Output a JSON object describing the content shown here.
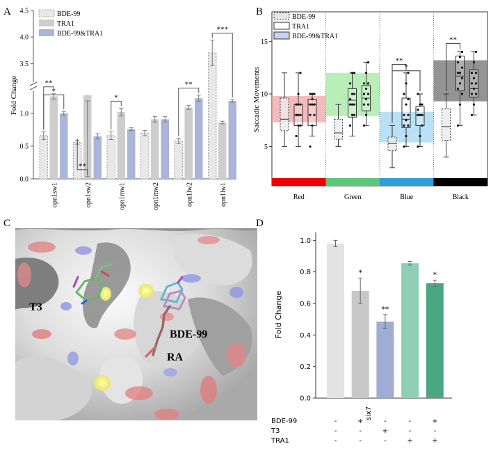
{
  "panels": {
    "A": "A",
    "B": "B",
    "C": "C",
    "D": "D"
  },
  "colors": {
    "bde": "#e8e8e8",
    "tra": "#cdcdcd",
    "combo": "#a9b5d9",
    "d_bars": [
      "#e3e3e3",
      "#c8c8c8",
      "#9fadd4",
      "#8fcfb5",
      "#4aa784"
    ],
    "b_zones": [
      "#ee9797",
      "#93e593",
      "#95cff0",
      "#5a5a5a"
    ],
    "b_strip": [
      "#ee0000",
      "#5ac77c",
      "#2d9ed7",
      "#000000"
    ]
  },
  "chart_data": [
    {
      "panel": "A",
      "type": "bar",
      "ylabel": "Fold Change",
      "y_lower_ticks": [
        "0.0",
        "0.5",
        "1.0"
      ],
      "y_upper_ticks": [
        "3.5",
        "4.0",
        "4.5"
      ],
      "ylim_lower": [
        0,
        1.35
      ],
      "ylim_upper": [
        3.15,
        4.5
      ],
      "axis_break": true,
      "legend_position": "top-left",
      "categories": [
        "opn1sw1",
        "opn1sw2",
        "opn1mw1",
        "opn1mw2",
        "opn1lw2",
        "opn1lw1"
      ],
      "series": [
        {
          "name": "BDE-99",
          "values": [
            0.66,
            0.56,
            0.66,
            0.7,
            0.58,
            3.7
          ],
          "errors": [
            0.06,
            0.03,
            0.06,
            0.04,
            0.04,
            0.24
          ]
        },
        {
          "name": "TRA1",
          "values": [
            1.26,
            1.28,
            1.02,
            0.91,
            1.09,
            0.86
          ],
          "errors": [
            0.04,
            0.09,
            0.06,
            0.04,
            0.03,
            0.02
          ]
        },
        {
          "name": "BDE-99&TRA1",
          "values": [
            1.0,
            0.65,
            0.76,
            0.91,
            1.23,
            1.19
          ],
          "errors": [
            0.03,
            0.04,
            0.02,
            0.04,
            0.05,
            0.02
          ]
        }
      ],
      "annotations": [
        {
          "group": 0,
          "label": "*",
          "from": 0,
          "to": 2
        },
        {
          "group": 0,
          "label": "**",
          "from": 0,
          "to": 1
        },
        {
          "group": 1,
          "label": "**",
          "from": 0,
          "to": 1
        },
        {
          "group": 2,
          "label": "*",
          "from": 0,
          "to": 1
        },
        {
          "group": 4,
          "label": "**",
          "from": 0,
          "to": 2
        },
        {
          "group": 5,
          "label": "***",
          "from": 0,
          "to": 2
        }
      ]
    },
    {
      "panel": "B",
      "type": "box",
      "ylabel": "Saccadic Movements",
      "y_ticks": [
        "5",
        "10",
        "15"
      ],
      "ylim": [
        2,
        17.8
      ],
      "categories": [
        "Red",
        "Green",
        "Blue",
        "Black"
      ],
      "legend": [
        "BDE-99",
        "TRA1",
        "BDE-99&TRA1"
      ],
      "legend_position": "top-left",
      "shaded_bands": [
        [
          7.3,
          9.8
        ],
        [
          7.9,
          12.0
        ],
        [
          5.4,
          8.3
        ],
        [
          9.3,
          13.2
        ]
      ],
      "boxes": [
        [
          [
            5,
            6.5,
            7.6,
            9.6,
            12
          ],
          [
            5,
            7,
            8,
            9,
            12
          ],
          [
            6,
            7,
            9,
            9.5,
            10
          ]
        ],
        [
          [
            5,
            5.7,
            6.3,
            7.6,
            9
          ],
          [
            6,
            7.8,
            9.4,
            10.5,
            12
          ],
          [
            7,
            8.4,
            9.6,
            10.8,
            13
          ]
        ],
        [
          [
            3,
            4.6,
            5.3,
            5.9,
            7
          ],
          [
            5,
            6.8,
            7.6,
            9.6,
            12
          ],
          [
            5,
            7,
            8,
            8.8,
            10
          ]
        ],
        [
          [
            4,
            5.6,
            6.9,
            8.6,
            10
          ],
          [
            7,
            10.3,
            11.7,
            13.6,
            14
          ],
          [
            8,
            9.7,
            10.5,
            12.3,
            14
          ]
        ]
      ],
      "points": [
        [
          [],
          [
            6,
            7,
            7,
            8,
            8,
            8,
            8,
            9,
            9,
            9,
            10,
            12
          ],
          [
            5,
            7,
            8,
            8,
            9,
            9,
            9,
            9.5,
            10,
            10,
            10
          ]
        ],
        [
          [],
          [
            7,
            8,
            8,
            9,
            9,
            9,
            9.5,
            10,
            10,
            11,
            12,
            12
          ],
          [
            7,
            8,
            9,
            9,
            9.5,
            10,
            10,
            10.5,
            11,
            11,
            12,
            13
          ]
        ],
        [
          [],
          [
            5,
            6,
            7,
            7,
            7.5,
            8,
            8,
            9,
            9.5,
            10,
            11,
            12
          ],
          [
            5,
            6,
            7,
            8,
            8,
            8,
            8.5,
            9,
            9,
            10
          ]
        ],
        [
          [],
          [
            7,
            9,
            10,
            10.5,
            11,
            11.5,
            12,
            12,
            12.5,
            13,
            13.5,
            14
          ],
          [
            8,
            9,
            10,
            10,
            10.5,
            11,
            11,
            11.5,
            12,
            12,
            13,
            14
          ]
        ]
      ],
      "annotations": [
        {
          "group": 2,
          "label": "**",
          "from": 0,
          "to": 1
        },
        {
          "group": 2,
          "label": "*",
          "from": 0,
          "to": 2
        },
        {
          "group": 3,
          "label": "**",
          "from": 0,
          "to": 1
        }
      ]
    },
    {
      "panel": "D",
      "type": "bar",
      "ylabel": "Fold Change",
      "y_ticks": [
        "0.0",
        "0.2",
        "0.4",
        "0.6",
        "0.8",
        "1.0"
      ],
      "ylim": [
        0,
        1.05
      ],
      "xlabel": "six7",
      "values": [
        0.98,
        0.68,
        0.485,
        0.855,
        0.728
      ],
      "errors": [
        0.02,
        0.08,
        0.045,
        0.012,
        0.02
      ],
      "significance": [
        "",
        "*",
        "**",
        "",
        "*"
      ],
      "treatments": [
        {
          "name": "BDE-99",
          "signs": [
            "-",
            "+",
            "-",
            "-",
            "+"
          ]
        },
        {
          "name": "T3",
          "signs": [
            "-",
            "-",
            "+",
            "-",
            "-"
          ]
        },
        {
          "name": "TRA1",
          "signs": [
            "-",
            "-",
            "-",
            "+",
            "+"
          ]
        }
      ]
    }
  ],
  "molecule_image": {
    "labels": [
      {
        "id": "t3",
        "text": "T3"
      },
      {
        "id": "bde",
        "text": "BDE-99"
      },
      {
        "id": "ra",
        "text": "RA"
      }
    ]
  }
}
